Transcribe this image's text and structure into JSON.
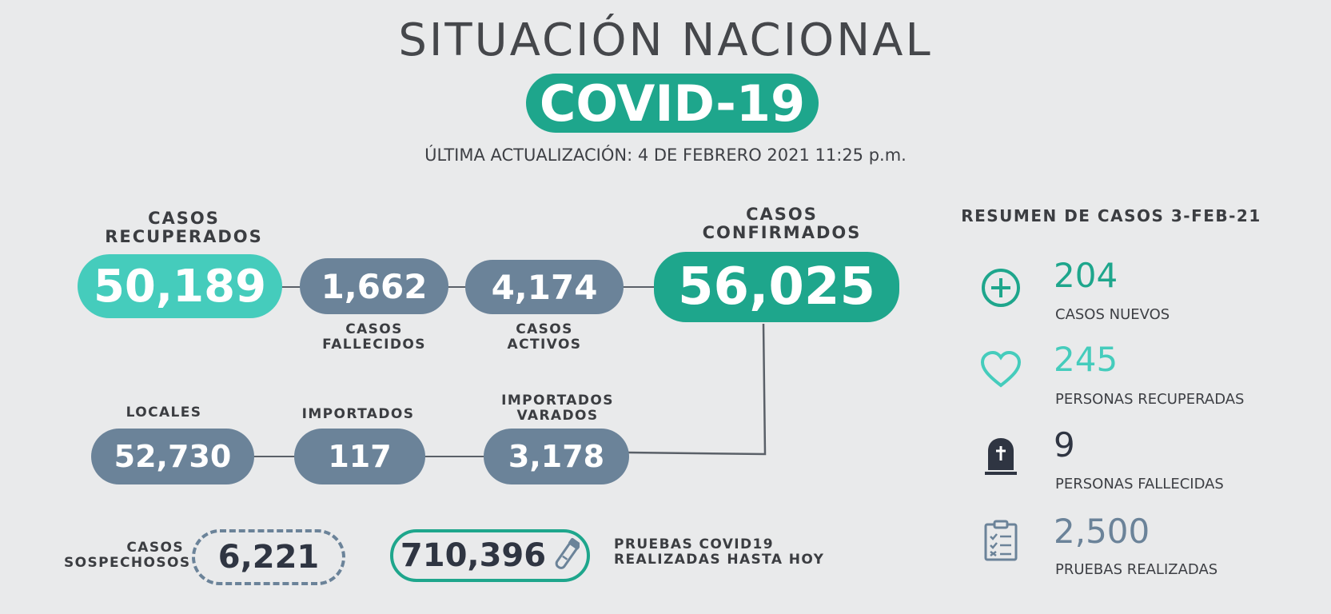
{
  "header": {
    "title": "SITUACIÓN NACIONAL",
    "badge": "COVID-19",
    "updated": "ÚLTIMA ACTUALIZACIÓN: 4 DE FEBRERO 2021 11:25 p.m."
  },
  "flow": {
    "recuperados": {
      "label": "CASOS\nRECUPERADOS",
      "value": "50,189"
    },
    "fallecidos": {
      "label": "CASOS\nFALLECIDOS",
      "value": "1,662"
    },
    "activos": {
      "label": "CASOS\nACTIVOS",
      "value": "4,174"
    },
    "confirmados": {
      "label": "CASOS\nCONFIRMADOS",
      "value": "56,025"
    },
    "locales": {
      "label": "LOCALES",
      "value": "52,730"
    },
    "importados": {
      "label": "IMPORTADOS",
      "value": "117"
    },
    "varados": {
      "label": "IMPORTADOS\nVARADOS",
      "value": "3,178"
    }
  },
  "bottom": {
    "sospechosos": {
      "label": "CASOS\nSOSPECHOSOS",
      "value": "6,221"
    },
    "pruebas": {
      "label": "PRUEBAS COVID19\nREALIZADAS HASTA HOY",
      "value": "710,396"
    }
  },
  "summary": {
    "title": "RESUMEN DE CASOS 3-FEB-21",
    "items": [
      {
        "icon": "plus-circle-icon",
        "value": "204",
        "label": "CASOS NUEVOS",
        "color": "#1ea68c"
      },
      {
        "icon": "heart-icon",
        "value": "245",
        "label": "PERSONAS RECUPERADAS",
        "color": "#45ccbc"
      },
      {
        "icon": "tombstone-icon",
        "value": "9",
        "label": "PERSONAS FALLECIDAS",
        "color": "#2f3542"
      },
      {
        "icon": "clipboard-icon",
        "value": "2,500",
        "label": "PRUEBAS REALIZADAS",
        "color": "#6b8399"
      }
    ]
  }
}
